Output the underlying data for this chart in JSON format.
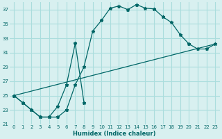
{
  "xlabel": "Humidex (Indice chaleur)",
  "bg_color": "#d8f0f0",
  "grid_color": "#aadddd",
  "line_color": "#006666",
  "xlim": [
    -0.5,
    23.5
  ],
  "ylim": [
    21,
    38
  ],
  "yticks": [
    21,
    23,
    25,
    27,
    29,
    31,
    33,
    35,
    37
  ],
  "xticks": [
    0,
    1,
    2,
    3,
    4,
    5,
    6,
    7,
    8,
    9,
    10,
    11,
    12,
    13,
    14,
    15,
    16,
    17,
    18,
    19,
    20,
    21,
    22,
    23
  ],
  "series": [
    {
      "x": [
        0,
        1,
        2,
        3,
        4,
        5,
        6,
        7,
        8,
        9,
        10,
        11,
        12,
        13,
        14,
        15,
        16,
        17,
        18,
        19,
        20,
        21,
        22,
        23
      ],
      "y": [
        25,
        24,
        23,
        22,
        22,
        22,
        23,
        26.5,
        29,
        34,
        35.5,
        37.2,
        37.5,
        37.0,
        37.7,
        37.2,
        37.1,
        36.0,
        35.2,
        33.5,
        32.2,
        31.5,
        31.5,
        32.2
      ]
    },
    {
      "x": [
        0,
        1,
        2,
        3,
        4,
        5,
        6,
        7,
        8
      ],
      "y": [
        25,
        24,
        23,
        22,
        22,
        23.5,
        26.5,
        32.3,
        24.0
      ]
    },
    {
      "x": [
        0,
        23
      ],
      "y": [
        25,
        32.2
      ]
    }
  ]
}
